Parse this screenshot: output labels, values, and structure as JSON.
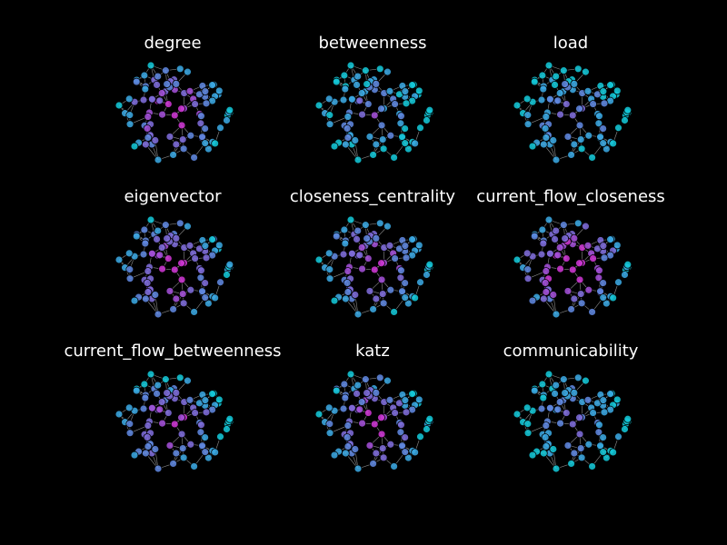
{
  "figure": {
    "background": "#000000",
    "edge_color": "#bdbdbd",
    "node_outline": "#000000",
    "colormap": [
      "#13c6d6",
      "#3aa6e0",
      "#5f86de",
      "#7d6bd8",
      "#a24ed6",
      "#cc35d2"
    ]
  },
  "panels": [
    {
      "title": "degree"
    },
    {
      "title": "betweenness"
    },
    {
      "title": "load"
    },
    {
      "title": "eigenvector"
    },
    {
      "title": "closeness_centrality"
    },
    {
      "title": "current_flow_closeness"
    },
    {
      "title": "current_flow_betweenness"
    },
    {
      "title": "katz"
    },
    {
      "title": "communicability"
    }
  ],
  "graph": {
    "node_count": 90,
    "layout_seed": 7,
    "panel_centrality_bias": [
      0.55,
      0.15,
      0.18,
      0.6,
      0.5,
      0.7,
      0.45,
      0.5,
      0.2
    ]
  }
}
